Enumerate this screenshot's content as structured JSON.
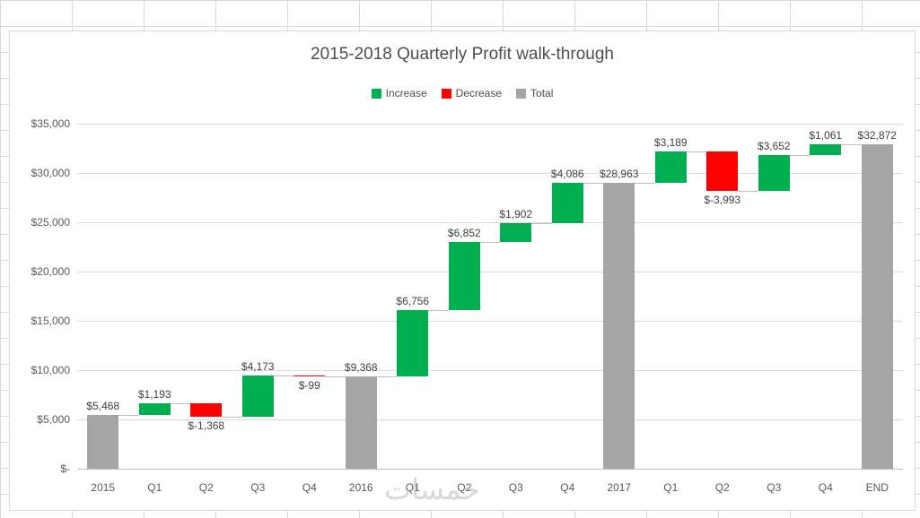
{
  "watermark": "خمسات",
  "chart_data": {
    "type": "bar",
    "subtype": "waterfall",
    "title": "2015-2018 Quarterly Profit walk-through",
    "xlabel": "",
    "ylabel": "",
    "grid": true,
    "legend_position": "top",
    "ylim": [
      0,
      35000
    ],
    "y_ticks": [
      {
        "label": "$35,000",
        "value": 35000
      },
      {
        "label": "$30,000",
        "value": 30000
      },
      {
        "label": "$25,000",
        "value": 25000
      },
      {
        "label": "$20,000",
        "value": 20000
      },
      {
        "label": "$15,000",
        "value": 15000
      },
      {
        "label": "$10,000",
        "value": 10000
      },
      {
        "label": "$5,000",
        "value": 5000
      },
      {
        "label": "$-",
        "value": 0
      }
    ],
    "legend": [
      {
        "label": "Increase",
        "color": "#00B050",
        "kind": "increase"
      },
      {
        "label": "Decrease",
        "color": "#FF0000",
        "kind": "decrease"
      },
      {
        "label": "Total",
        "color": "#A5A5A5",
        "kind": "total"
      }
    ],
    "categories": [
      "2015",
      "Q1",
      "Q2",
      "Q3",
      "Q4",
      "2016",
      "Q1",
      "Q2",
      "Q3",
      "Q4",
      "2017",
      "Q1",
      "Q2",
      "Q3",
      "Q4",
      "END"
    ],
    "bars": [
      {
        "label": "2015",
        "value": 5468,
        "display": "$5,468",
        "kind": "total"
      },
      {
        "label": "Q1",
        "value": 1193,
        "display": "$1,193",
        "kind": "increase"
      },
      {
        "label": "Q2",
        "value": -1368,
        "display": "$-1,368",
        "kind": "decrease"
      },
      {
        "label": "Q3",
        "value": 4173,
        "display": "$4,173",
        "kind": "increase"
      },
      {
        "label": "Q4",
        "value": -99,
        "display": "$-99",
        "kind": "decrease"
      },
      {
        "label": "2016",
        "value": 9368,
        "display": "$9,368",
        "kind": "total"
      },
      {
        "label": "Q1",
        "value": 6756,
        "display": "$6,756",
        "kind": "increase"
      },
      {
        "label": "Q2",
        "value": 6852,
        "display": "$6,852",
        "kind": "increase"
      },
      {
        "label": "Q3",
        "value": 1902,
        "display": "$1,902",
        "kind": "increase"
      },
      {
        "label": "Q4",
        "value": 4086,
        "display": "$4,086",
        "kind": "increase"
      },
      {
        "label": "2017",
        "value": 28963,
        "display": "$28,963",
        "kind": "total"
      },
      {
        "label": "Q1",
        "value": 3189,
        "display": "$3,189",
        "kind": "increase"
      },
      {
        "label": "Q2",
        "value": -3993,
        "display": "$-3,993",
        "kind": "decrease"
      },
      {
        "label": "Q3",
        "value": 3652,
        "display": "$3,652",
        "kind": "increase"
      },
      {
        "label": "Q4",
        "value": 1061,
        "display": "$1,061",
        "kind": "increase"
      },
      {
        "label": "END",
        "value": 32872,
        "display": "$32,872",
        "kind": "total"
      }
    ]
  }
}
